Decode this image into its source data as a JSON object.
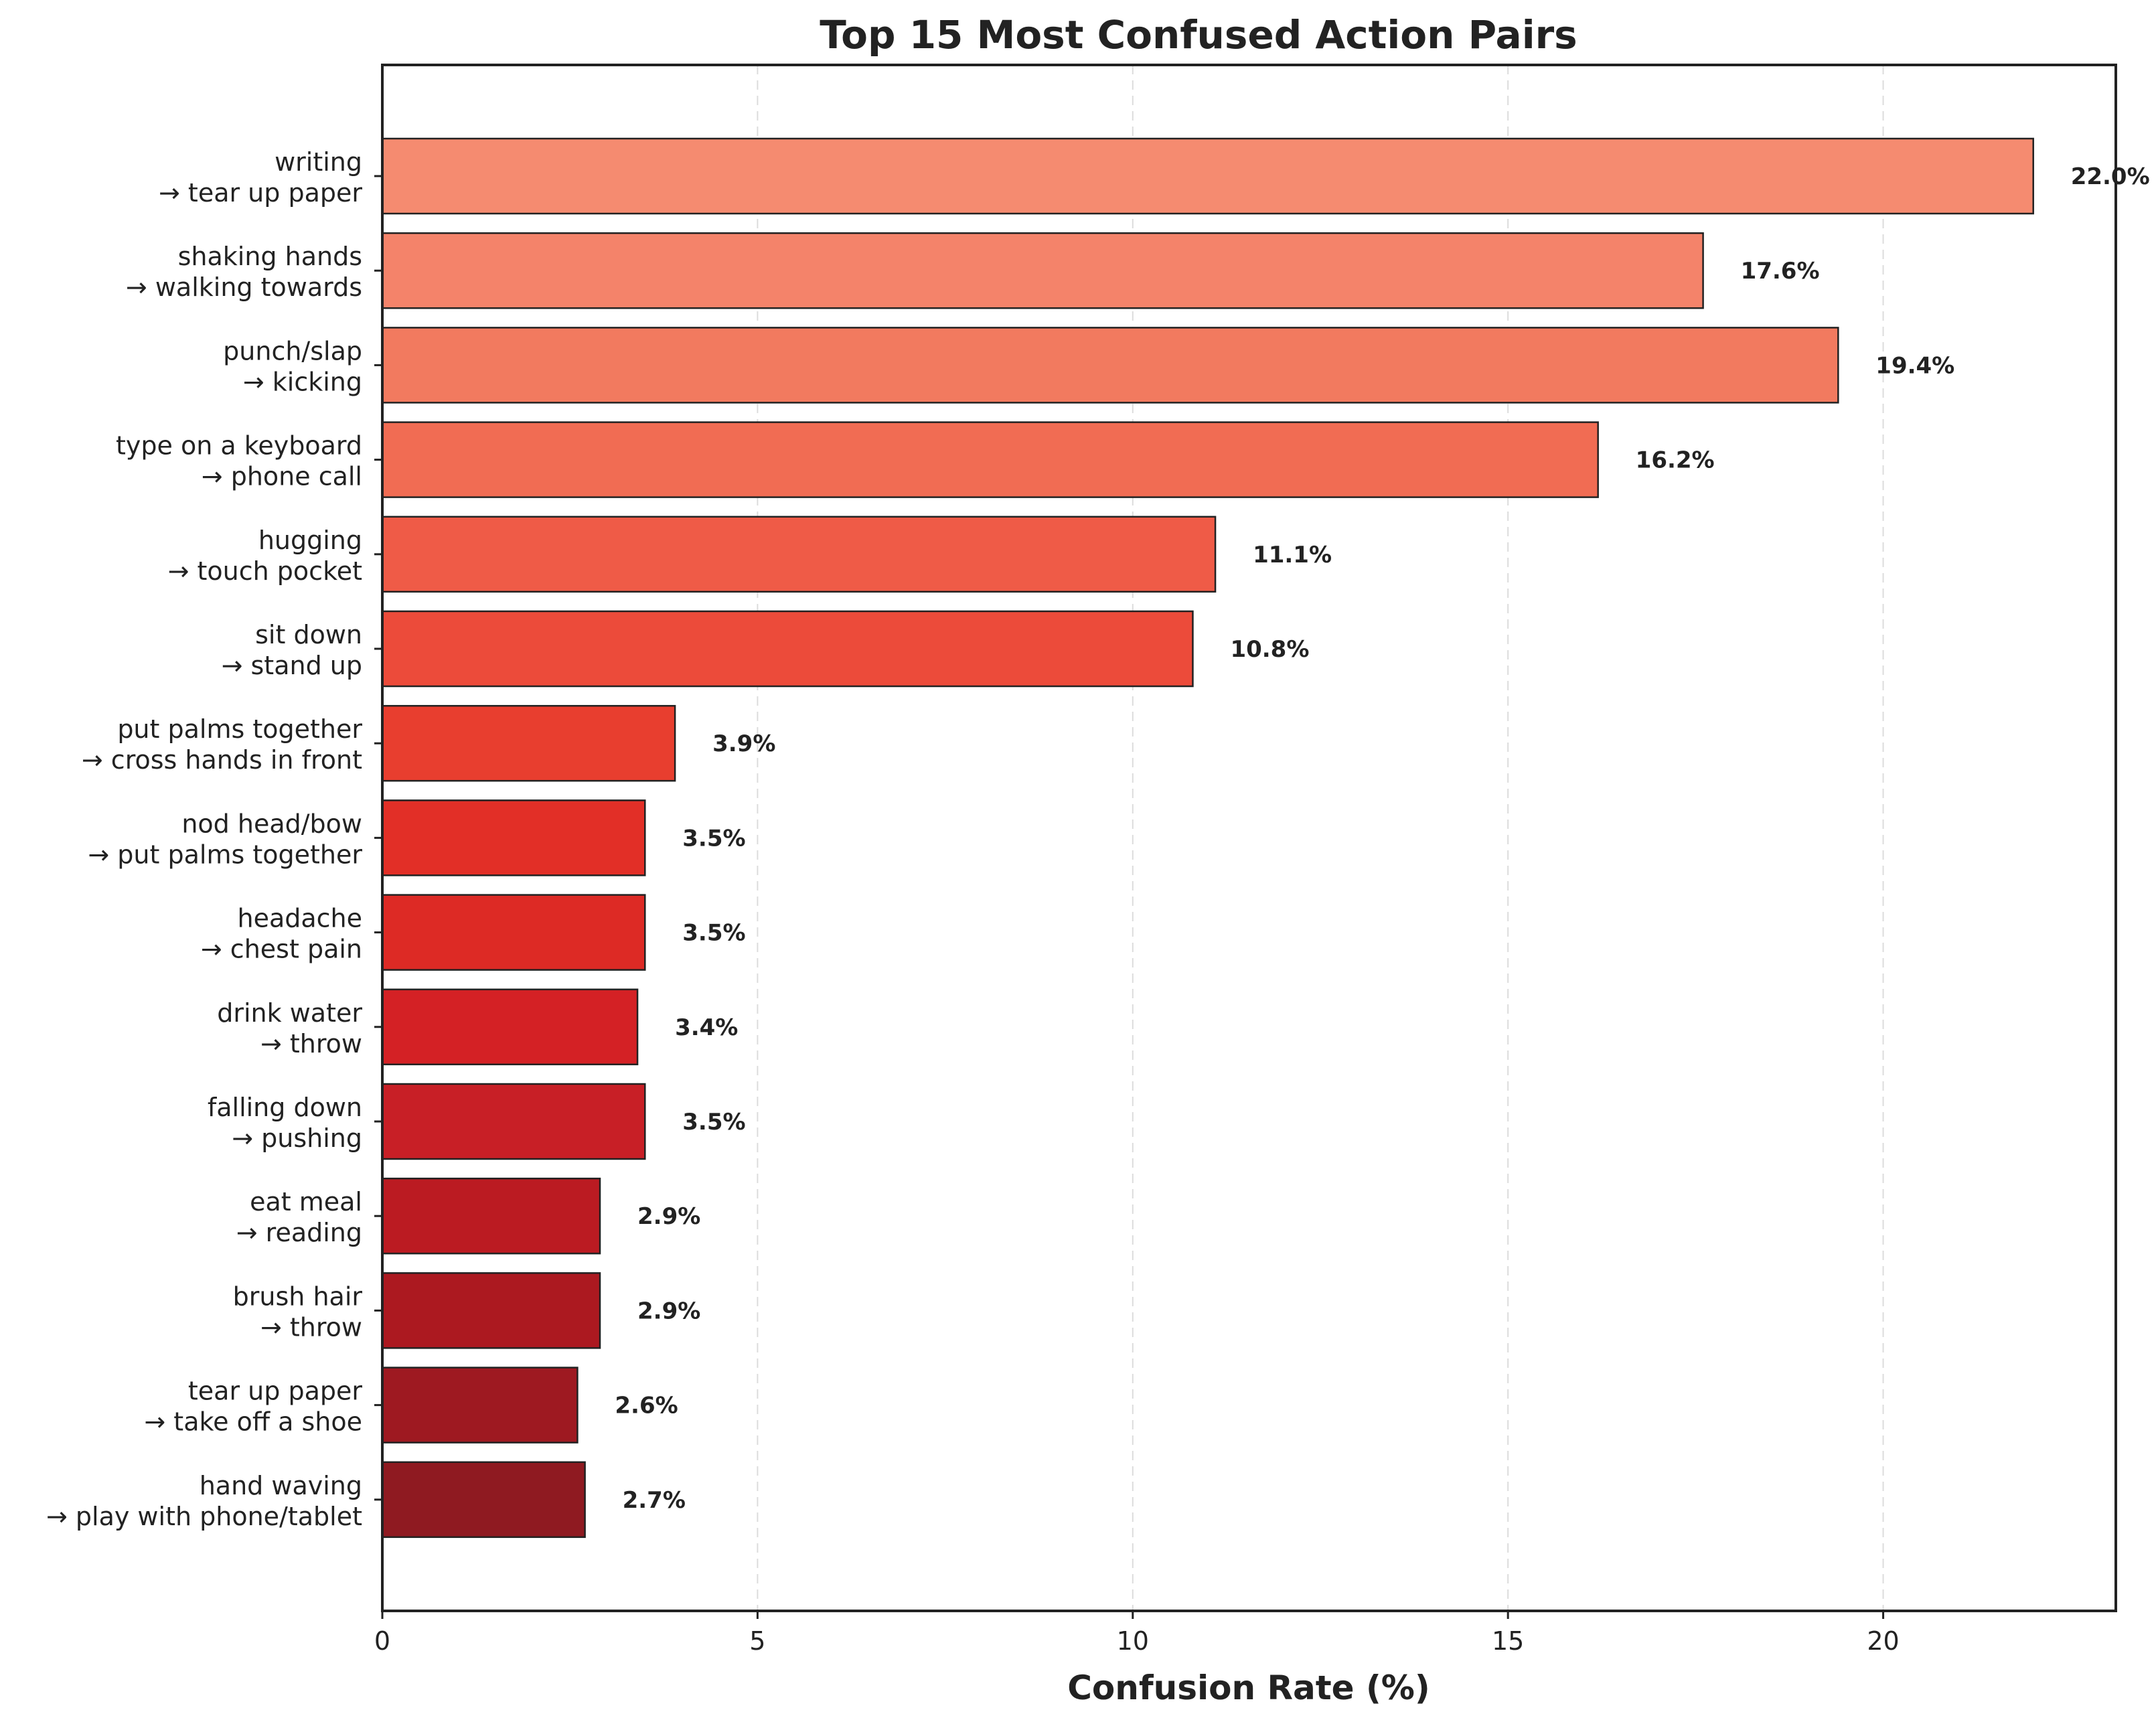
{
  "chart_data": {
    "type": "bar",
    "orientation": "horizontal",
    "title": "Top 15 Most Confused Action Pairs",
    "xlabel": "Confusion Rate (%)",
    "ylabel": "",
    "xlim": [
      0,
      23.1
    ],
    "xticks": [
      "0",
      "5",
      "10",
      "15",
      "20"
    ],
    "grid": "x-dashed",
    "categories": [
      {
        "line1": "writing",
        "line2": "→ tear up paper"
      },
      {
        "line1": "shaking hands",
        "line2": "→ walking towards"
      },
      {
        "line1": "punch/slap",
        "line2": "→ kicking"
      },
      {
        "line1": "type on a keyboard",
        "line2": "→ phone call"
      },
      {
        "line1": "hugging",
        "line2": "→ touch pocket"
      },
      {
        "line1": "sit down",
        "line2": "→ stand up"
      },
      {
        "line1": "put palms together",
        "line2": "→ cross hands in front"
      },
      {
        "line1": "nod head/bow",
        "line2": "→ put palms together"
      },
      {
        "line1": "headache",
        "line2": "→ chest pain"
      },
      {
        "line1": "drink water",
        "line2": "→ throw"
      },
      {
        "line1": "falling down",
        "line2": "→ pushing"
      },
      {
        "line1": "eat meal",
        "line2": "→ reading"
      },
      {
        "line1": "brush hair",
        "line2": "→ throw"
      },
      {
        "line1": "tear up paper",
        "line2": "→ take off a shoe"
      },
      {
        "line1": "hand waving",
        "line2": "→ play with phone/tablet"
      }
    ],
    "values": [
      22.0,
      17.6,
      19.4,
      16.2,
      11.1,
      10.8,
      3.9,
      3.5,
      3.5,
      3.4,
      3.5,
      2.9,
      2.9,
      2.6,
      2.7
    ],
    "value_labels": [
      "22.0%",
      "17.6%",
      "19.4%",
      "16.2%",
      "11.1%",
      "10.8%",
      "3.9%",
      "3.5%",
      "3.5%",
      "3.4%",
      "3.5%",
      "2.9%",
      "2.9%",
      "2.6%",
      "2.7%"
    ],
    "colors": [
      "#f58b70",
      "#f4836a",
      "#f27a5f",
      "#f16c53",
      "#ef5b47",
      "#ec4b3a",
      "#e83e2f",
      "#e22f27",
      "#dd2a25",
      "#d42125",
      "#c81f26",
      "#bb1b22",
      "#ac1920",
      "#9e1921",
      "#8f1a21"
    ]
  }
}
